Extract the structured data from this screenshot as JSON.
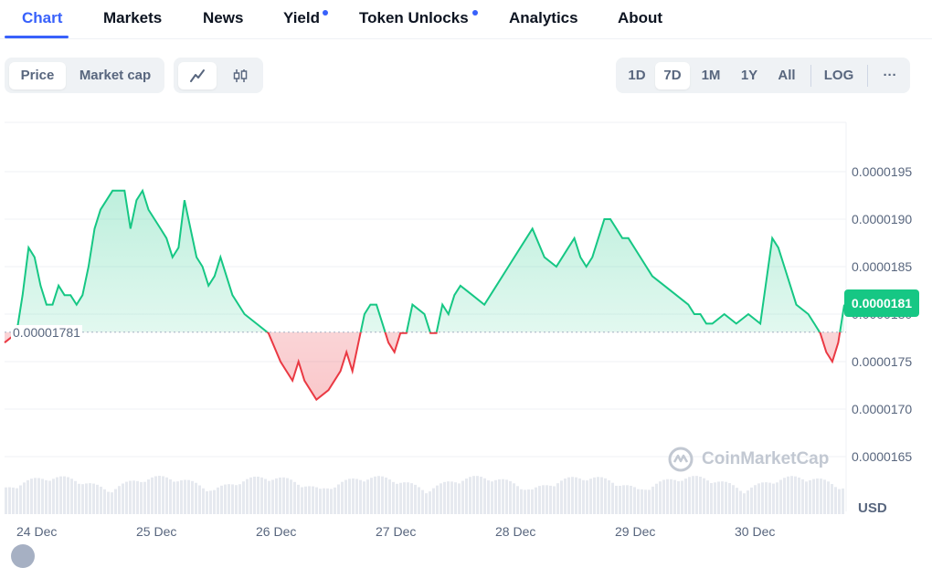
{
  "tabs": [
    {
      "label": "Chart",
      "active": true,
      "dot": false
    },
    {
      "label": "Markets",
      "active": false,
      "dot": false
    },
    {
      "label": "News",
      "active": false,
      "dot": false
    },
    {
      "label": "Yield",
      "active": false,
      "dot": true
    },
    {
      "label": "Token Unlocks",
      "active": false,
      "dot": true
    },
    {
      "label": "Analytics",
      "active": false,
      "dot": false
    },
    {
      "label": "About",
      "active": false,
      "dot": false
    }
  ],
  "metric_toggle": {
    "price_label": "Price",
    "market_cap_label": "Market cap",
    "selected": "Price"
  },
  "chart_style_toggle": {
    "line_icon": "line-chart-icon",
    "candle_icon": "candlestick-icon",
    "selected": "line"
  },
  "ranges": {
    "items": [
      "1D",
      "7D",
      "1M",
      "1Y",
      "All"
    ],
    "selected": "7D",
    "log_label": "LOG",
    "more_label": "···"
  },
  "chart_data": {
    "type": "line",
    "currency_label": "USD",
    "reference_value": 1.781e-05,
    "reference_label": "0.00001781",
    "current_price": 1.81e-05,
    "current_price_label": "0.0000181",
    "ylim": [
      1.6e-05,
      2e-05
    ],
    "y_ticks": [
      1.65e-05,
      1.7e-05,
      1.75e-05,
      1.8e-05,
      1.85e-05,
      1.9e-05,
      1.95e-05
    ],
    "y_tick_labels": [
      "0.0000165",
      "0.0000170",
      "0.0000175",
      "0.0000180",
      "0.0000185",
      "0.0000190",
      "0.0000195"
    ],
    "x_ticks": [
      "24 Dec",
      "25 Dec",
      "26 Dec",
      "27 Dec",
      "28 Dec",
      "29 Dec",
      "30 Dec"
    ],
    "x_range_days": [
      0,
      7
    ],
    "x_days": [
      0.0,
      0.1,
      0.15,
      0.2,
      0.25,
      0.3,
      0.35,
      0.4,
      0.45,
      0.5,
      0.55,
      0.6,
      0.65,
      0.7,
      0.75,
      0.8,
      0.9,
      1.0,
      1.05,
      1.1,
      1.15,
      1.2,
      1.25,
      1.3,
      1.35,
      1.4,
      1.45,
      1.5,
      1.55,
      1.6,
      1.65,
      1.7,
      1.75,
      1.8,
      1.9,
      2.0,
      2.1,
      2.2,
      2.3,
      2.35,
      2.4,
      2.45,
      2.5,
      2.6,
      2.7,
      2.8,
      2.85,
      2.9,
      2.95,
      3.0,
      3.05,
      3.1,
      3.15,
      3.2,
      3.25,
      3.3,
      3.35,
      3.4,
      3.5,
      3.55,
      3.6,
      3.65,
      3.7,
      3.75,
      3.8,
      3.9,
      4.0,
      4.1,
      4.2,
      4.3,
      4.4,
      4.5,
      4.6,
      4.7,
      4.75,
      4.8,
      4.85,
      4.9,
      5.0,
      5.05,
      5.1,
      5.15,
      5.2,
      5.3,
      5.4,
      5.5,
      5.6,
      5.7,
      5.75,
      5.8,
      5.85,
      5.9,
      6.0,
      6.1,
      6.2,
      6.3,
      6.4,
      6.45,
      6.5,
      6.6,
      6.7,
      6.75,
      6.8,
      6.85,
      6.9,
      6.95,
      7.0
    ],
    "prices": [
      1.77e-05,
      1.78e-05,
      1.82e-05,
      1.87e-05,
      1.86e-05,
      1.83e-05,
      1.81e-05,
      1.81e-05,
      1.83e-05,
      1.82e-05,
      1.82e-05,
      1.81e-05,
      1.82e-05,
      1.85e-05,
      1.89e-05,
      1.91e-05,
      1.93e-05,
      1.93e-05,
      1.89e-05,
      1.92e-05,
      1.93e-05,
      1.91e-05,
      1.9e-05,
      1.89e-05,
      1.88e-05,
      1.86e-05,
      1.87e-05,
      1.92e-05,
      1.89e-05,
      1.86e-05,
      1.85e-05,
      1.83e-05,
      1.84e-05,
      1.86e-05,
      1.82e-05,
      1.8e-05,
      1.79e-05,
      1.78e-05,
      1.75e-05,
      1.74e-05,
      1.73e-05,
      1.75e-05,
      1.73e-05,
      1.71e-05,
      1.72e-05,
      1.74e-05,
      1.76e-05,
      1.74e-05,
      1.77e-05,
      1.8e-05,
      1.81e-05,
      1.81e-05,
      1.79e-05,
      1.77e-05,
      1.76e-05,
      1.78e-05,
      1.78e-05,
      1.81e-05,
      1.8e-05,
      1.78e-05,
      1.78e-05,
      1.81e-05,
      1.8e-05,
      1.82e-05,
      1.83e-05,
      1.82e-05,
      1.81e-05,
      1.83e-05,
      1.85e-05,
      1.87e-05,
      1.89e-05,
      1.86e-05,
      1.85e-05,
      1.87e-05,
      1.88e-05,
      1.86e-05,
      1.85e-05,
      1.86e-05,
      1.9e-05,
      1.9e-05,
      1.89e-05,
      1.88e-05,
      1.88e-05,
      1.86e-05,
      1.84e-05,
      1.83e-05,
      1.82e-05,
      1.81e-05,
      1.8e-05,
      1.8e-05,
      1.79e-05,
      1.79e-05,
      1.8e-05,
      1.79e-05,
      1.8e-05,
      1.79e-05,
      1.88e-05,
      1.87e-05,
      1.85e-05,
      1.81e-05,
      1.8e-05,
      1.79e-05,
      1.78e-05,
      1.76e-05,
      1.75e-05,
      1.77e-05,
      1.81e-05
    ],
    "volume_shown": true,
    "watermark": "CoinMarketCap"
  }
}
